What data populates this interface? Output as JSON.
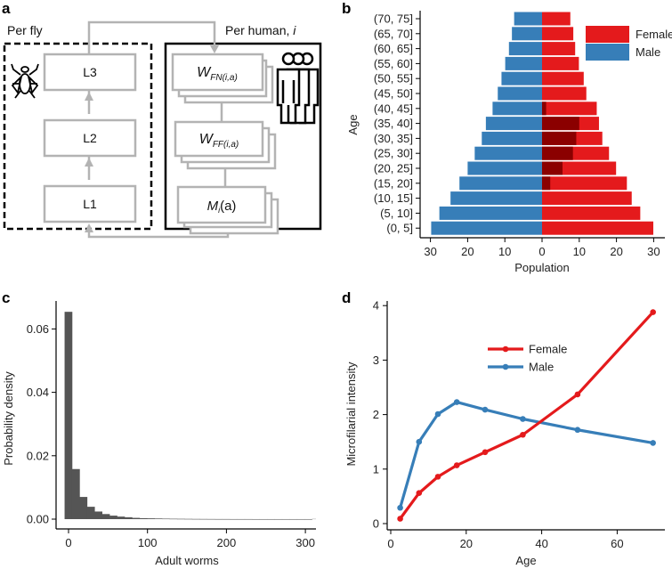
{
  "panel_labels": {
    "a": "a",
    "b": "b",
    "c": "c",
    "d": "d"
  },
  "diagram": {
    "per_fly": "Per fly",
    "per_human": "Per human, ",
    "per_human_index": "i",
    "l3": "L3",
    "l2": "L2",
    "l1": "L1",
    "w_fn": {
      "main": "W",
      "sub": "FN(i,a)"
    },
    "w_ff": {
      "main": "W",
      "sub": "FF(i,a)"
    },
    "m": {
      "main": "M",
      "sub": "i",
      "arg": "(a)"
    },
    "icons": [
      "fly-icon",
      "people-icon"
    ]
  },
  "colors": {
    "female": "#e41a1c",
    "male": "#377eb8",
    "infected": "#8b0000",
    "hist": "#555555"
  },
  "chart_data": [
    {
      "id": "b",
      "type": "bar",
      "orientation": "horizontal-pyramid",
      "categories": [
        "(0, 5]",
        "(5, 10]",
        "(10, 15]",
        "(15, 20]",
        "(20, 25]",
        "(25, 30]",
        "(30, 35]",
        "(35, 40]",
        "(40, 45]",
        "(45, 50]",
        "(50, 55]",
        "(55, 60]",
        "(60, 65]",
        "(65, 70]",
        "(70, 75]"
      ],
      "series": [
        {
          "name": "Male",
          "side": "left",
          "values": [
            29.8,
            27.6,
            24.6,
            22.2,
            20.0,
            18.1,
            16.2,
            15.1,
            13.3,
            11.9,
            10.9,
            9.9,
            8.9,
            8.1,
            7.5
          ]
        },
        {
          "name": "Female",
          "side": "right",
          "values": [
            29.9,
            26.4,
            24.1,
            22.8,
            19.9,
            18.0,
            16.2,
            15.3,
            14.7,
            11.9,
            11.2,
            9.9,
            8.9,
            8.4,
            7.6
          ]
        },
        {
          "name": "Female (dark overlay)",
          "side": "right",
          "values": [
            0,
            0,
            0,
            2.2,
            5.5,
            8.3,
            9.2,
            10.0,
            1.1,
            0,
            0,
            0,
            0,
            0,
            0
          ]
        }
      ],
      "xticks": [
        "30",
        "20",
        "10",
        "0",
        "10",
        "20",
        "30"
      ],
      "xtick_values": [
        -30,
        -20,
        -10,
        0,
        10,
        20,
        30
      ],
      "xlabel": "Population",
      "ylabel": "Age",
      "xlim": [
        -32,
        32
      ],
      "legend": {
        "entries": [
          "Female",
          "Male"
        ],
        "placement": "top-right"
      }
    },
    {
      "id": "c",
      "type": "bar",
      "subtype": "histogram",
      "bin_width": 9.5,
      "bin_start": -5,
      "values": [
        0.0654,
        0.0158,
        0.007,
        0.0039,
        0.0024,
        0.0016,
        0.0011,
        0.0008,
        0.0006,
        0.0004,
        0.0003,
        0.00025,
        0.0002,
        0.00015,
        0.00012,
        0.0001,
        8e-05,
        6e-05,
        5e-05,
        4e-05,
        3e-05,
        3e-05,
        2e-05,
        2e-05,
        2e-05,
        1e-05,
        1e-05,
        1e-05,
        1e-05,
        1e-05,
        1e-05,
        1e-05,
        1e-05
      ],
      "xlabel": "Adult worms",
      "ylabel": "Probability density",
      "xticks": [
        "0",
        "100",
        "200",
        "300"
      ],
      "xtick_values": [
        0,
        100,
        200,
        300
      ],
      "yticks": [
        "0.00",
        "0.02",
        "0.04",
        "0.06"
      ],
      "ytick_values": [
        0,
        0.02,
        0.04,
        0.06
      ],
      "xlim": [
        -15,
        315
      ],
      "ylim": [
        -0.003,
        0.068
      ]
    },
    {
      "id": "d",
      "type": "line",
      "x": [
        2.5,
        7.5,
        12.5,
        17.5,
        25,
        35,
        49.5,
        69.5
      ],
      "series": [
        {
          "name": "Female",
          "values": [
            0.09,
            0.56,
            0.86,
            1.07,
            1.31,
            1.63,
            2.37,
            3.88
          ]
        },
        {
          "name": "Male",
          "values": [
            0.29,
            1.5,
            2.01,
            2.23,
            2.09,
            1.92,
            1.72,
            1.48
          ]
        }
      ],
      "xlabel": "Age",
      "ylabel": "Microfilarial intensity",
      "xticks": [
        "0",
        "20",
        "40",
        "60"
      ],
      "xtick_values": [
        0,
        20,
        40,
        60
      ],
      "yticks": [
        "0",
        "1",
        "2",
        "3",
        "4"
      ],
      "ytick_values": [
        0,
        1,
        2,
        3,
        4
      ],
      "legend": {
        "entries": [
          "Female",
          "Male"
        ],
        "placement": "top-center"
      }
    }
  ]
}
